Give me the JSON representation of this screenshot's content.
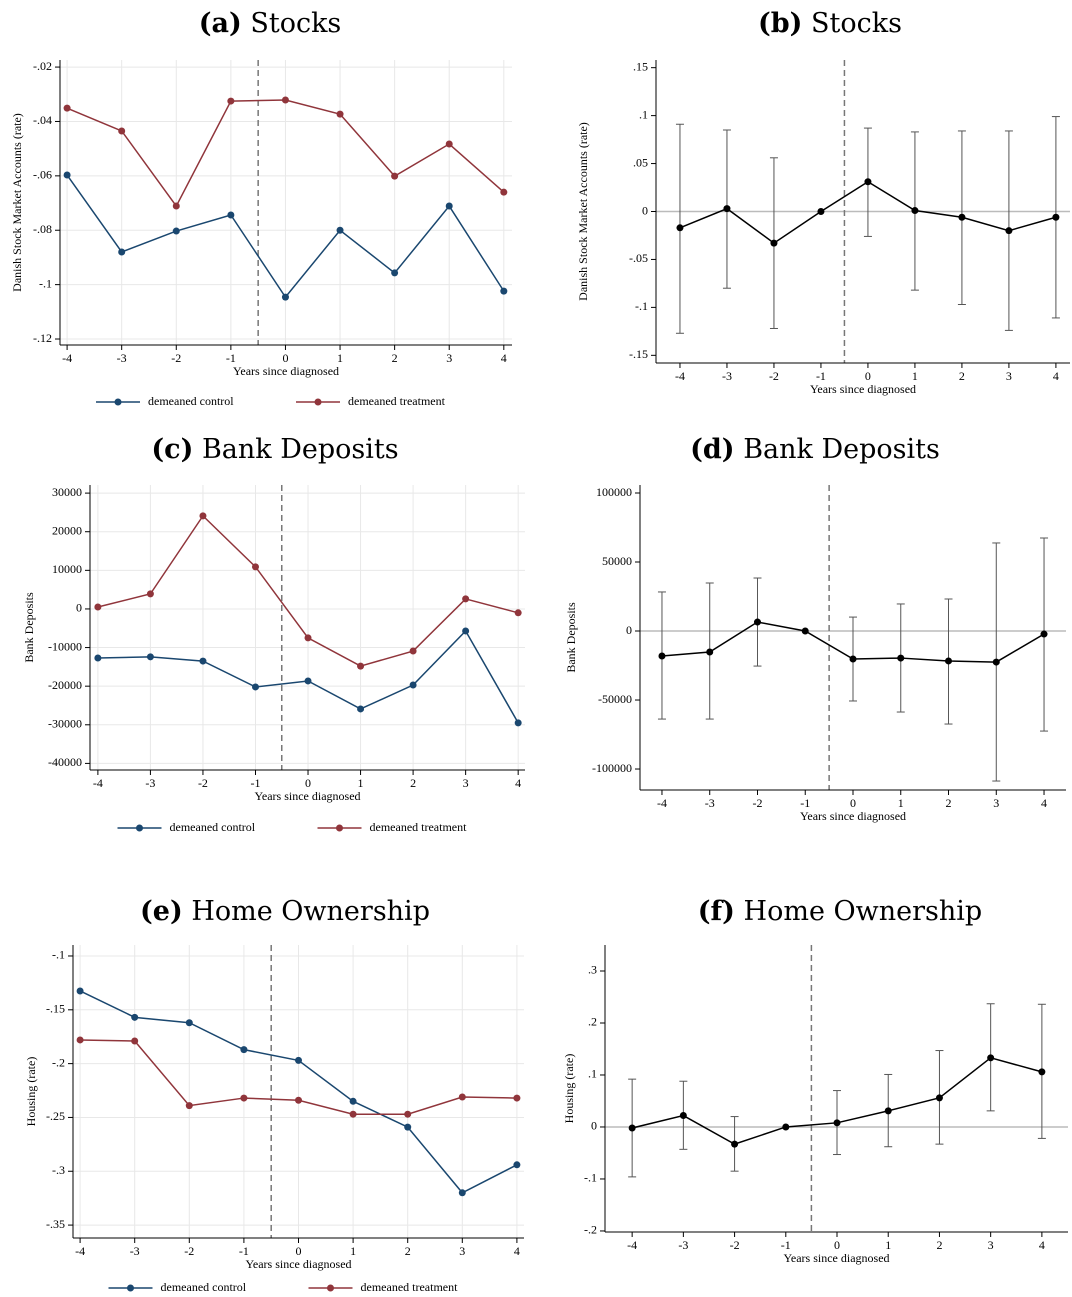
{
  "chart_data": [
    {
      "type": "line",
      "label": "(a)",
      "title": "Stocks",
      "xlabel": "Years since diagnosed",
      "ylabel": "Danish Stock Market Accounts (rate)",
      "x": [
        -4,
        -3,
        -2,
        -1,
        0,
        1,
        2,
        3,
        4
      ],
      "xlim": [
        -4.13,
        4.15
      ],
      "xticks": [
        -4,
        -3,
        -2,
        -1,
        0,
        1,
        2,
        3,
        4
      ],
      "ylim": [
        -0.1222,
        -0.0174
      ],
      "yticks": [
        {
          "value": -0.12,
          "label": "-.12"
        },
        {
          "value": -0.1,
          "label": "-.1"
        },
        {
          "value": -0.08,
          "label": "-.08"
        },
        {
          "value": -0.06,
          "label": "-.06"
        },
        {
          "value": -0.04,
          "label": "-.04"
        },
        {
          "value": -0.02,
          "label": "-.02"
        }
      ],
      "grid": true,
      "vline": -0.5,
      "series": [
        {
          "name": "demeaned control",
          "color": "#1a476f",
          "values": [
            -0.0597,
            -0.088,
            -0.0803,
            -0.0744,
            -0.1046,
            -0.08,
            -0.0957,
            -0.0711,
            -0.1024
          ]
        },
        {
          "name": "demeaned treatment",
          "color": "#90353b",
          "values": [
            -0.0351,
            -0.0435,
            -0.0711,
            -0.0325,
            -0.0321,
            -0.0373,
            -0.0601,
            -0.0483,
            -0.066
          ]
        }
      ]
    },
    {
      "type": "line",
      "label": "(b)",
      "title": "Stocks",
      "xlabel": "Years since diagnosed",
      "ylabel": "Danish Stock Market Accounts (rate)",
      "x": [
        -4,
        -3,
        -2,
        -1,
        0,
        1,
        2,
        3,
        4
      ],
      "xlim": [
        -4.51,
        4.3
      ],
      "xticks": [
        -4,
        -3,
        -2,
        -1,
        0,
        1,
        2,
        3,
        4
      ],
      "ylim": [
        -0.158,
        0.158
      ],
      "yticks": [
        {
          "value": -0.15,
          "label": "-.15"
        },
        {
          "value": -0.1,
          "label": "-.1"
        },
        {
          "value": -0.05,
          "label": "-.05"
        },
        0,
        {
          "value": 0.05,
          "label": ".05"
        },
        {
          "value": 0.1,
          "label": ".1"
        },
        {
          "value": 0.15,
          "label": ".15"
        }
      ],
      "grid": false,
      "hline": 0,
      "vline": -0.5,
      "series": [
        {
          "color": "#000000",
          "values": [
            -0.017,
            0.003,
            -0.033,
            0,
            0.031,
            0.001,
            -0.006,
            -0.02,
            -0.006
          ],
          "lower": [
            -0.127,
            -0.08,
            -0.122,
            null,
            -0.026,
            -0.082,
            -0.097,
            -0.124,
            -0.111
          ],
          "upper": [
            0.091,
            0.085,
            0.056,
            null,
            0.087,
            0.083,
            0.084,
            0.084,
            0.099
          ]
        }
      ]
    },
    {
      "type": "line",
      "label": "(c)",
      "title": "Bank Deposits",
      "xlabel": "Years since diagnosed",
      "ylabel": "Bank Deposits",
      "x": [
        -4,
        -3,
        -2,
        -1,
        0,
        1,
        2,
        3,
        4
      ],
      "xlim": [
        -4.15,
        4.13
      ],
      "xticks": [
        -4,
        -3,
        -2,
        -1,
        0,
        1,
        2,
        3,
        4
      ],
      "ylim": [
        -41710,
        32100
      ],
      "yticks": [
        -40000,
        -30000,
        -20000,
        -10000,
        0,
        10000,
        20000,
        30000
      ],
      "grid": true,
      "vline": -0.5,
      "series": [
        {
          "name": "demeaned control",
          "color": "#1a476f",
          "values": [
            -12700,
            -12400,
            -13500,
            -20200,
            -18650,
            -25900,
            -19700,
            -5700,
            -29500
          ]
        },
        {
          "name": "demeaned treatment",
          "color": "#90353b",
          "values": [
            500,
            3900,
            24100,
            10900,
            -7500,
            -14800,
            -10900,
            2600,
            -1000
          ]
        }
      ]
    },
    {
      "type": "line",
      "label": "(d)",
      "title": "Bank Deposits",
      "xlabel": "Years since diagnosed",
      "ylabel": "Bank Deposits",
      "x": [
        -4,
        -3,
        -2,
        -1,
        0,
        1,
        2,
        3,
        4
      ],
      "xlim": [
        -4.46,
        4.46
      ],
      "xticks": [
        -4,
        -3,
        -2,
        -1,
        0,
        1,
        2,
        3,
        4
      ],
      "ylim": [
        -115200,
        105800
      ],
      "yticks": [
        -100000,
        -50000,
        0,
        50000,
        100000
      ],
      "grid": false,
      "hline": 0,
      "vline": -0.5,
      "series": [
        {
          "color": "#000000",
          "values": [
            -18100,
            -15200,
            6500,
            0,
            -20300,
            -19600,
            -21700,
            -22500,
            -2200
          ],
          "lower": [
            -63800,
            -63800,
            -25400,
            null,
            -50700,
            -58700,
            -67400,
            -108700,
            -72500
          ],
          "upper": [
            28300,
            34800,
            38400,
            null,
            10100,
            19600,
            23200,
            63800,
            67400
          ]
        }
      ]
    },
    {
      "type": "line",
      "label": "(e)",
      "title": "Home Ownership",
      "xlabel": "Years since diagnosed",
      "ylabel": "Housing (rate)",
      "x": [
        -4,
        -3,
        -2,
        -1,
        0,
        1,
        2,
        3,
        4
      ],
      "xlim": [
        -4.13,
        4.13
      ],
      "xticks": [
        -4,
        -3,
        -2,
        -1,
        0,
        1,
        2,
        3,
        4
      ],
      "ylim": [
        -0.362,
        -0.0898
      ],
      "yticks": [
        {
          "value": -0.35,
          "label": "-.35"
        },
        {
          "value": -0.3,
          "label": "-.3"
        },
        {
          "value": -0.25,
          "label": "-.25"
        },
        {
          "value": -0.2,
          "label": "-.2"
        },
        {
          "value": -0.15,
          "label": "-.15"
        },
        {
          "value": -0.1,
          "label": "-.1"
        }
      ],
      "grid": true,
      "vline": -0.5,
      "series": [
        {
          "name": "demeaned control",
          "color": "#1a476f",
          "values": [
            -0.1325,
            -0.157,
            -0.162,
            -0.187,
            -0.197,
            -0.235,
            -0.259,
            -0.32,
            -0.294
          ]
        },
        {
          "name": "demeaned treatment",
          "color": "#90353b",
          "values": [
            -0.178,
            -0.179,
            -0.239,
            -0.232,
            -0.234,
            -0.247,
            -0.247,
            -0.231,
            -0.232
          ]
        }
      ]
    },
    {
      "type": "line",
      "label": "(f)",
      "title": "Home Ownership",
      "xlabel": "Years since diagnosed",
      "ylabel": "Housing (rate)",
      "x": [
        -4,
        -3,
        -2,
        -1,
        0,
        1,
        2,
        3,
        4
      ],
      "xlim": [
        -4.53,
        4.51
      ],
      "xticks": [
        -4,
        -3,
        -2,
        -1,
        0,
        1,
        2,
        3,
        4
      ],
      "ylim": [
        -0.202,
        0.35
      ],
      "yticks": [
        {
          "value": -0.2,
          "label": "-.2"
        },
        {
          "value": -0.1,
          "label": "-.1"
        },
        0,
        {
          "value": 0.1,
          "label": ".1"
        },
        {
          "value": 0.2,
          "label": ".2"
        },
        {
          "value": 0.3,
          "label": ".3"
        }
      ],
      "grid": false,
      "hline": 0,
      "vline": -0.5,
      "series": [
        {
          "color": "#000000",
          "values": [
            -0.002,
            0.022,
            -0.033,
            0,
            0.008,
            0.031,
            0.056,
            0.133,
            0.106
          ],
          "lower": [
            -0.096,
            -0.043,
            -0.085,
            null,
            -0.053,
            -0.038,
            -0.033,
            0.031,
            -0.022
          ],
          "upper": [
            0.092,
            0.088,
            0.02,
            null,
            0.07,
            0.101,
            0.147,
            0.237,
            0.236
          ]
        }
      ]
    }
  ]
}
